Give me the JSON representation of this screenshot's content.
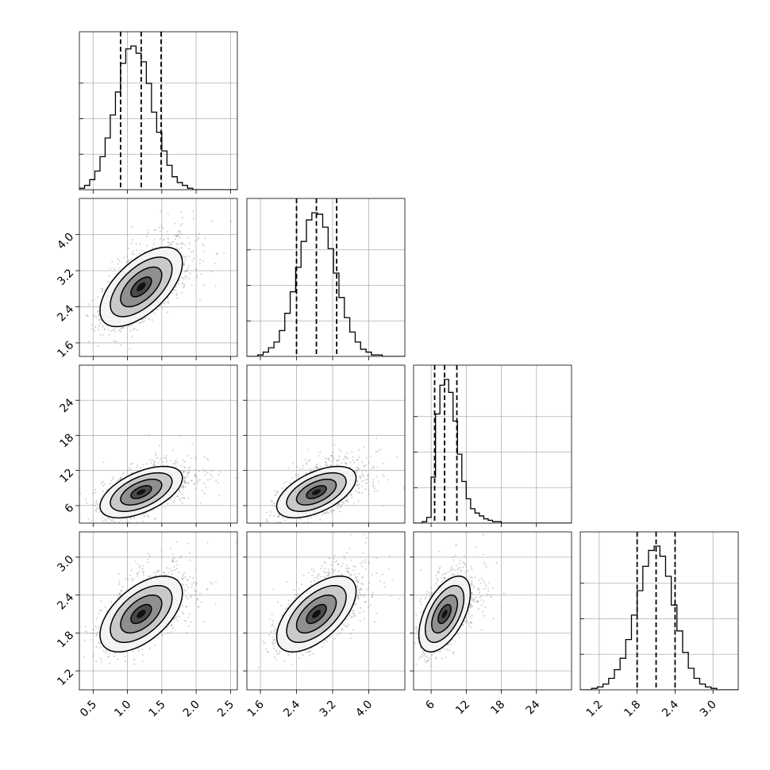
{
  "chart_data": {
    "type": "corner",
    "grid": true,
    "parameters": [
      {
        "axis_range": [
          0.3,
          2.6
        ],
        "ticks": [
          "0.5",
          "1.0",
          "1.5",
          "2.0",
          "2.5"
        ],
        "quantiles": [
          0.9,
          1.2,
          1.49
        ]
      },
      {
        "axis_range": [
          1.3,
          4.8
        ],
        "ticks": [
          "1.6",
          "2.4",
          "3.2",
          "4.0"
        ],
        "quantiles": [
          2.4,
          2.84,
          3.29
        ]
      },
      {
        "axis_range": [
          3.0,
          30.0
        ],
        "ticks": [
          "6",
          "12",
          "18",
          "24"
        ],
        "quantiles": [
          6.6,
          8.3,
          10.4
        ]
      },
      {
        "axis_range": [
          0.9,
          3.4
        ],
        "ticks": [
          "1.2",
          "1.8",
          "2.4",
          "3.0"
        ],
        "quantiles": [
          1.8,
          2.1,
          2.4
        ]
      }
    ],
    "histograms": [
      {
        "edges": [
          0.3,
          0.375,
          0.45,
          0.525,
          0.6,
          0.675,
          0.75,
          0.825,
          0.9,
          0.975,
          1.05,
          1.125,
          1.2,
          1.275,
          1.35,
          1.425,
          1.5,
          1.575,
          1.65,
          1.725,
          1.8,
          1.875,
          1.95,
          2.025,
          2.1,
          2.175,
          2.25,
          2.325,
          2.4,
          2.475,
          2.55,
          2.6
        ],
        "counts": [
          1,
          3,
          7,
          13,
          23,
          36,
          52,
          68,
          88,
          98,
          100,
          95,
          89,
          74,
          54,
          40,
          27,
          17,
          9,
          5,
          3,
          1,
          0,
          0,
          0,
          0,
          0,
          0,
          0,
          0,
          0
        ]
      },
      {
        "edges": [
          1.3,
          1.42,
          1.54,
          1.66,
          1.78,
          1.9,
          2.02,
          2.14,
          2.26,
          2.38,
          2.5,
          2.62,
          2.74,
          2.86,
          2.98,
          3.1,
          3.22,
          3.34,
          3.46,
          3.58,
          3.7,
          3.82,
          3.94,
          4.06,
          4.18,
          4.3,
          4.42,
          4.54,
          4.66,
          4.8
        ],
        "counts": [
          0,
          0,
          1,
          3,
          6,
          10,
          18,
          30,
          45,
          62,
          80,
          95,
          100,
          99,
          90,
          75,
          58,
          41,
          27,
          17,
          10,
          5,
          3,
          1,
          1,
          0,
          0,
          0,
          0
        ]
      },
      {
        "edges": [
          3.0,
          3.75,
          4.5,
          5.25,
          6.0,
          6.75,
          7.5,
          8.25,
          9.0,
          9.75,
          10.5,
          11.25,
          12.0,
          12.75,
          13.5,
          14.25,
          15.0,
          15.75,
          16.5,
          17.25,
          18.0,
          18.75,
          19.5,
          20.25,
          21.0,
          21.75,
          22.5,
          23.25,
          24.0,
          30.0
        ],
        "counts": [
          0,
          0,
          1,
          4,
          32,
          76,
          96,
          100,
          91,
          71,
          48,
          29,
          17,
          10,
          7,
          5,
          3,
          2,
          1,
          1,
          0,
          0,
          0,
          0,
          0,
          0,
          0,
          0,
          0
        ]
      },
      {
        "edges": [
          0.9,
          0.99,
          1.08,
          1.17,
          1.26,
          1.35,
          1.44,
          1.53,
          1.62,
          1.71,
          1.8,
          1.89,
          1.98,
          2.07,
          2.16,
          2.25,
          2.34,
          2.43,
          2.52,
          2.61,
          2.7,
          2.79,
          2.88,
          2.97,
          3.06,
          3.15,
          3.24,
          3.4
        ],
        "counts": [
          0,
          0,
          1,
          2,
          4,
          8,
          14,
          22,
          35,
          52,
          69,
          86,
          97,
          100,
          93,
          79,
          59,
          41,
          26,
          15,
          8,
          4,
          2,
          1,
          0,
          0,
          0
        ]
      }
    ],
    "pairs": [
      {
        "x": 0,
        "y": 1,
        "center": [
          1.2,
          2.84
        ],
        "sd": [
          0.3,
          0.44
        ],
        "rho": 0.6
      },
      {
        "x": 0,
        "y": 2,
        "center": [
          1.2,
          8.3
        ],
        "sd": [
          0.3,
          2.2
        ],
        "rho": 0.55
      },
      {
        "x": 1,
        "y": 2,
        "center": [
          2.84,
          8.3
        ],
        "sd": [
          0.44,
          2.2
        ],
        "rho": 0.55
      },
      {
        "x": 0,
        "y": 3,
        "center": [
          1.2,
          2.1
        ],
        "sd": [
          0.3,
          0.3
        ],
        "rho": 0.55
      },
      {
        "x": 1,
        "y": 3,
        "center": [
          2.84,
          2.1
        ],
        "sd": [
          0.44,
          0.3
        ],
        "rho": 0.6
      },
      {
        "x": 2,
        "y": 3,
        "center": [
          8.3,
          2.1
        ],
        "sd": [
          2.2,
          0.3
        ],
        "rho": 0.55
      }
    ],
    "contour_levels_sigma": [
      0.5,
      1.0,
      1.5,
      2.0
    ],
    "colors": {
      "hist": "#000000",
      "points": "#8a8a8a",
      "contours": "#000000",
      "grid": "#b0b0b0"
    }
  }
}
